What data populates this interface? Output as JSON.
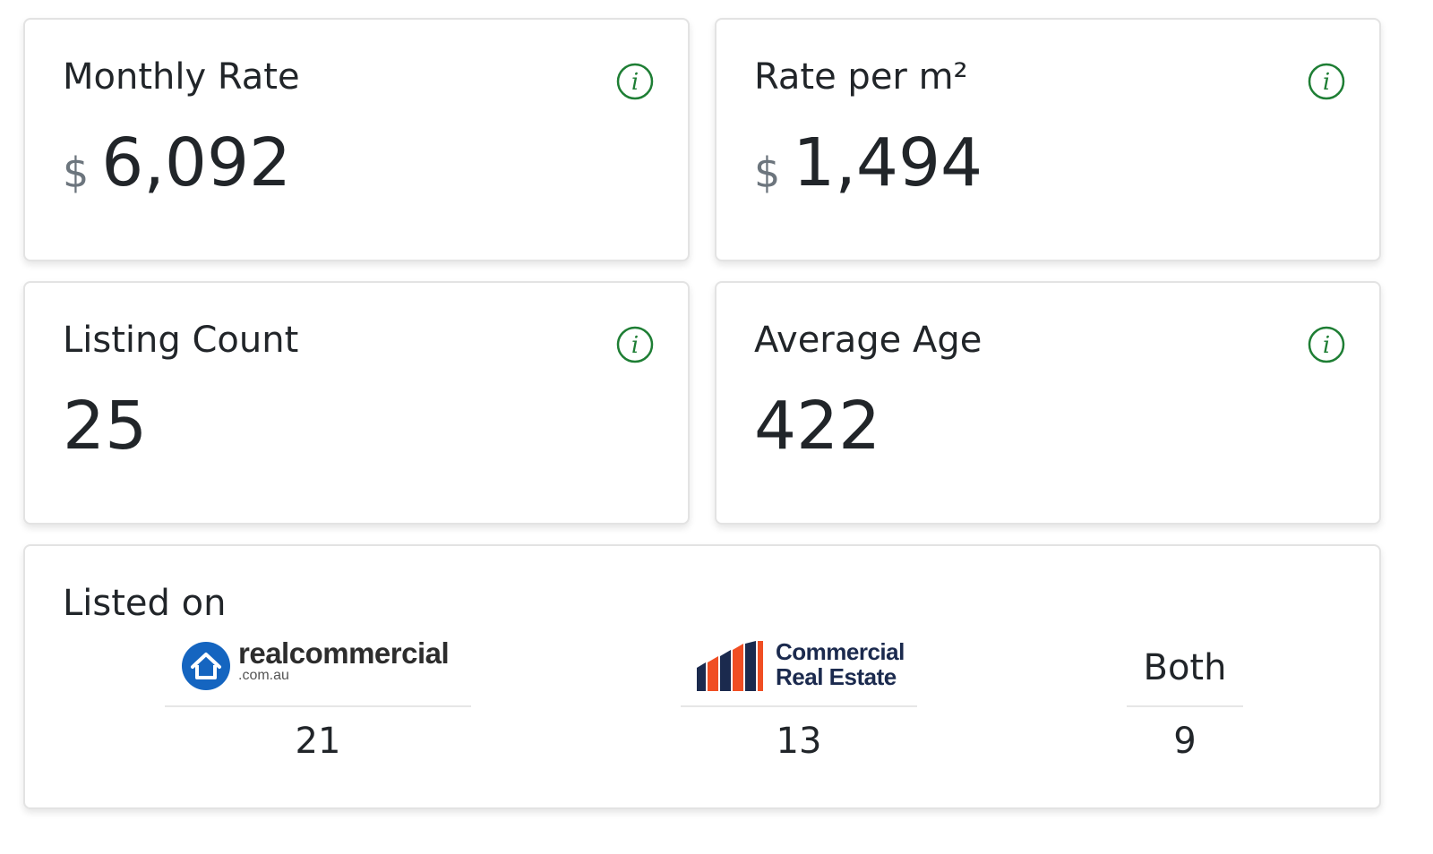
{
  "cards": {
    "monthly_rate": {
      "title": "Monthly Rate",
      "currency": "$",
      "value": "6,092"
    },
    "rate_per_m2": {
      "title": "Rate per m²",
      "currency": "$",
      "value": "1,494"
    },
    "listing_count": {
      "title": "Listing Count",
      "value": "25"
    },
    "average_age": {
      "title": "Average Age",
      "value": "422"
    }
  },
  "listed_on": {
    "title": "Listed on",
    "sources": [
      {
        "brand_name": "realcommercial",
        "brand_domain": ".com.au",
        "count": "21",
        "icon": "house-icon",
        "color": "#1565c0"
      },
      {
        "brand_line1": "Commercial",
        "brand_line2": "Real Estate",
        "count": "13",
        "icon": "bar-chart-logo-icon",
        "colors": [
          "#1b2a4e",
          "#f04e23"
        ]
      },
      {
        "label": "Both",
        "count": "9"
      }
    ]
  },
  "icons": {
    "info": "info-icon",
    "accent_color": "#1e7e34"
  }
}
